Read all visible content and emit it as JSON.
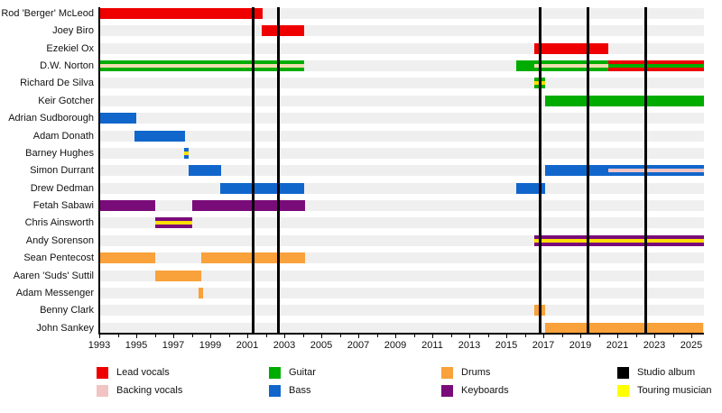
{
  "chart_data": {
    "type": "timeline",
    "description": "Band members timeline gantt chart, roles over years with studio album markers",
    "x_axis": {
      "start_year": 1993,
      "end_year": 2025.7,
      "labeled_ticks": [
        "1993",
        "1995",
        "1997",
        "1999",
        "2001",
        "2003",
        "2005",
        "2007",
        "2009",
        "2011",
        "2013",
        "2015",
        "2017",
        "2019",
        "2021",
        "2023",
        "2025"
      ],
      "minor_tick_every_years": 1,
      "labeled_tick_every_years": 2
    },
    "colors": {
      "lead_vocals": "#ee0000",
      "backing_vocals": "#f2c3c3",
      "backing_vocals_on_green": "#f0dcaf",
      "guitar": "#00ac00",
      "bass": "#1166cc",
      "drums": "#f9a13a",
      "keyboards": "#7a0c7a",
      "studio_album": "#000000",
      "touring_musician": "#ffff00",
      "touring_stripe": "#ffde00",
      "row_band": "#efefef"
    },
    "studio_album_years": [
      2001.3,
      2002.7,
      2016.85,
      2019.4,
      2022.55
    ],
    "members": [
      {
        "name": "Rod 'Berger' McLeod",
        "bars": [
          {
            "start": 1993.0,
            "end": 2001.85,
            "role": "lead_vocals"
          }
        ]
      },
      {
        "name": "Joey Biro",
        "bars": [
          {
            "start": 2001.8,
            "end": 2004.05,
            "role": "lead_vocals"
          }
        ]
      },
      {
        "name": "Ezekiel Ox",
        "bars": [
          {
            "start": 2016.5,
            "end": 2020.5,
            "role": "lead_vocals"
          }
        ]
      },
      {
        "name": "D.W. Norton",
        "bars": [
          {
            "start": 1993.0,
            "end": 2004.05,
            "role": "guitar",
            "stripe": "backing_vocals_on_green"
          },
          {
            "start": 2015.55,
            "end": 2016.5,
            "role": "guitar"
          },
          {
            "start": 2016.5,
            "end": 2020.5,
            "role": "guitar",
            "stripe": "backing_vocals_on_green"
          },
          {
            "start": 2020.5,
            "end": 2025.7,
            "role": "lead_vocals",
            "stripe": "guitar"
          }
        ]
      },
      {
        "name": "Richard De Silva",
        "bars": [
          {
            "start": 2016.5,
            "end": 2017.1,
            "role": "guitar",
            "stripe": "touring_stripe"
          }
        ]
      },
      {
        "name": "Keir Gotcher",
        "bars": [
          {
            "start": 2017.1,
            "end": 2025.7,
            "role": "guitar"
          }
        ]
      },
      {
        "name": "Adrian Sudborough",
        "bars": [
          {
            "start": 1993.0,
            "end": 1995.0,
            "role": "bass"
          }
        ]
      },
      {
        "name": "Adam Donath",
        "bars": [
          {
            "start": 1994.9,
            "end": 1997.65,
            "role": "bass"
          }
        ]
      },
      {
        "name": "Barney Hughes",
        "bars": [
          {
            "start": 1997.6,
            "end": 1997.85,
            "role": "bass",
            "stripe": "touring_stripe"
          }
        ]
      },
      {
        "name": "Simon Durrant",
        "bars": [
          {
            "start": 1997.85,
            "end": 1999.6,
            "role": "bass"
          },
          {
            "start": 2017.1,
            "end": 2020.5,
            "role": "bass"
          },
          {
            "start": 2020.5,
            "end": 2025.7,
            "role": "bass",
            "stripe": "backing_vocals"
          }
        ]
      },
      {
        "name": "Drew Dedman",
        "bars": [
          {
            "start": 1999.55,
            "end": 2004.05,
            "role": "bass"
          },
          {
            "start": 2015.55,
            "end": 2017.1,
            "role": "bass"
          }
        ]
      },
      {
        "name": "Fetah Sabawi",
        "bars": [
          {
            "start": 1993.0,
            "end": 1996.0,
            "role": "keyboards"
          },
          {
            "start": 1998.0,
            "end": 2004.1,
            "role": "keyboards"
          }
        ]
      },
      {
        "name": "Chris Ainsworth",
        "bars": [
          {
            "start": 1996.0,
            "end": 1998.0,
            "role": "keyboards",
            "stripe": "touring_stripe"
          }
        ]
      },
      {
        "name": "Andy Sorenson",
        "bars": [
          {
            "start": 2016.5,
            "end": 2025.7,
            "role": "keyboards",
            "stripe": "touring_stripe"
          }
        ]
      },
      {
        "name": "Sean Pentecost",
        "bars": [
          {
            "start": 1993.0,
            "end": 1996.0,
            "role": "drums"
          },
          {
            "start": 1998.5,
            "end": 2004.1,
            "role": "drums"
          }
        ]
      },
      {
        "name": "Aaren 'Suds' Suttil",
        "bars": [
          {
            "start": 1996.0,
            "end": 1998.5,
            "role": "drums"
          }
        ]
      },
      {
        "name": "Adam Messenger",
        "bars": [
          {
            "start": 1998.35,
            "end": 1998.6,
            "role": "drums"
          }
        ]
      },
      {
        "name": "Benny Clark",
        "bars": [
          {
            "start": 2016.5,
            "end": 2017.1,
            "role": "drums"
          }
        ]
      },
      {
        "name": "John Sankey",
        "bars": [
          {
            "start": 2017.1,
            "end": 2025.65,
            "role": "drums"
          }
        ]
      }
    ],
    "legend": [
      {
        "label": "Lead vocals",
        "color_key": "lead_vocals",
        "col": 0,
        "row": 0
      },
      {
        "label": "Backing vocals",
        "color_key": "backing_vocals",
        "col": 0,
        "row": 1
      },
      {
        "label": "Guitar",
        "color_key": "guitar",
        "col": 1,
        "row": 0
      },
      {
        "label": "Bass",
        "color_key": "bass",
        "col": 1,
        "row": 1
      },
      {
        "label": "Drums",
        "color_key": "drums",
        "col": 2,
        "row": 0
      },
      {
        "label": "Keyboards",
        "color_key": "keyboards",
        "col": 2,
        "row": 1
      },
      {
        "label": "Studio album",
        "color_key": "studio_album",
        "col": 3,
        "row": 0
      },
      {
        "label": "Touring musician",
        "color_key": "touring_musician",
        "col": 3,
        "row": 1
      }
    ]
  }
}
